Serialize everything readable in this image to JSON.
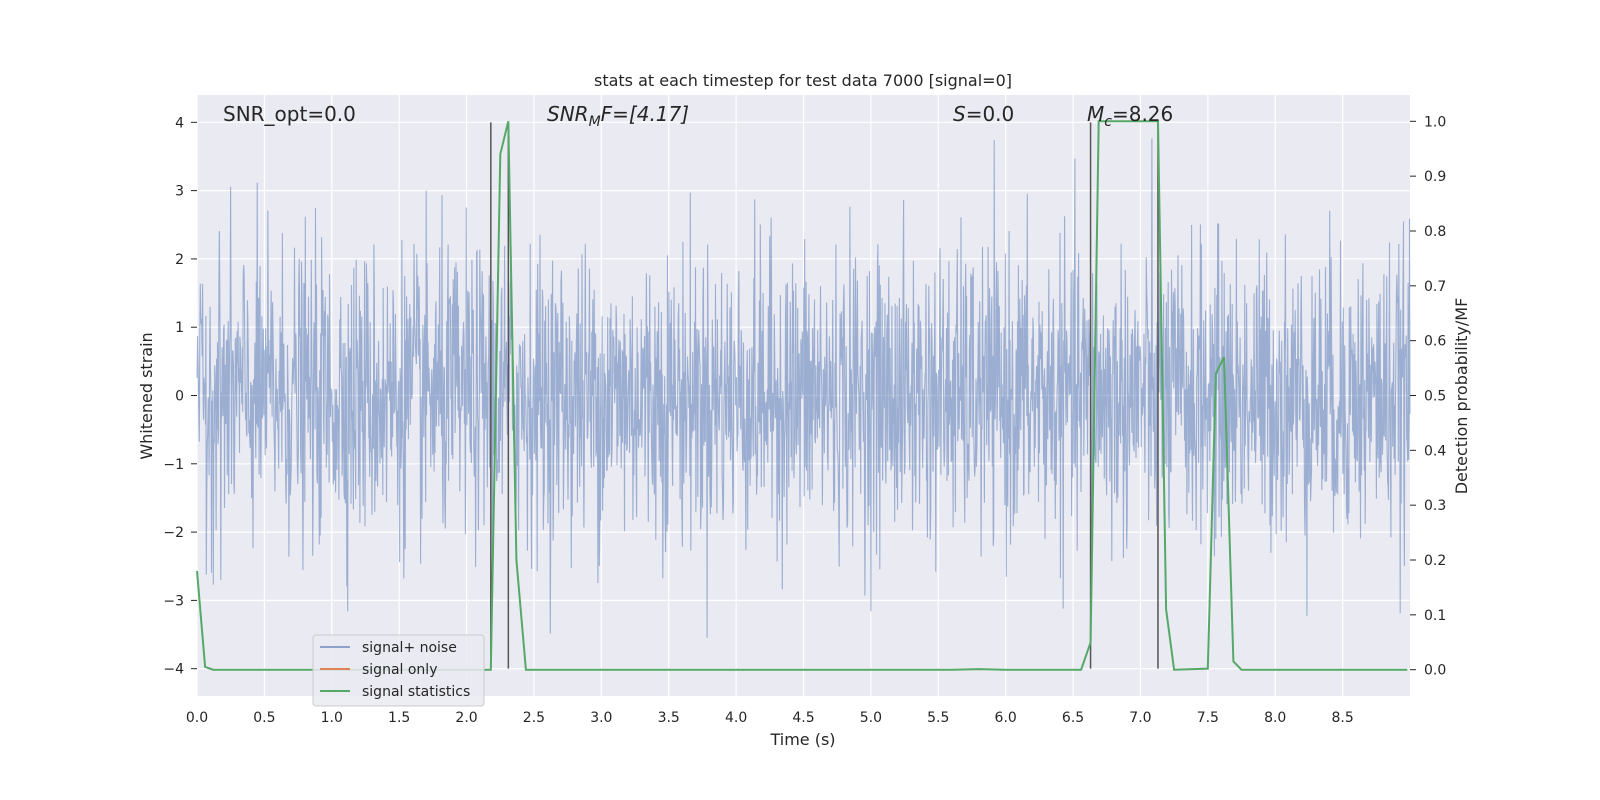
{
  "chart_data": {
    "type": "line",
    "title": "stats at each timestep for test data 7000 [signal=0]",
    "xlabel": "Time (s)",
    "ylabel": "Whitened strain",
    "y2label": "Detection probability/MF",
    "xlim": [
      0.0,
      9.0
    ],
    "ylim": [
      -4.4,
      4.4
    ],
    "y2lim": [
      -0.048,
      1.048
    ],
    "xticks": [
      "0.0",
      "0.5",
      "1.0",
      "1.5",
      "2.0",
      "2.5",
      "3.0",
      "3.5",
      "4.0",
      "4.5",
      "5.0",
      "5.5",
      "6.0",
      "6.5",
      "7.0",
      "7.5",
      "8.0",
      "8.5"
    ],
    "yticks": [
      "−4",
      "−3",
      "−2",
      "−1",
      "0",
      "1",
      "2",
      "3",
      "4"
    ],
    "y2ticks": [
      "0.0",
      "0.1",
      "0.2",
      "0.3",
      "0.4",
      "0.5",
      "0.6",
      "0.7",
      "0.8",
      "0.9",
      "1.0"
    ],
    "grid": true,
    "legend_position": "lower-left",
    "annotations": {
      "snr_opt": "SNR_opt=0.0",
      "snr_mf_main": "SNR",
      "snr_mf_sub": "M",
      "snr_mf_rest": "F=[4.17]",
      "s_italic": "S",
      "s_value": "=0.0",
      "mc_main": "M",
      "mc_sub": "c",
      "mc_value": "=8.26"
    },
    "vertical_lines_x": [
      2.18,
      2.31,
      6.63,
      7.13
    ],
    "series": [
      {
        "name": "signal+ noise",
        "color": "#4c72b0",
        "style": "dense noise, approx. Gaussian, amplitude range about -4 to 3.9"
      },
      {
        "name": "signal only",
        "color": "#dd8452",
        "values": []
      },
      {
        "name": "signal statistics",
        "color": "#55a868",
        "x": [
          0.0,
          0.06,
          0.12,
          0.5,
          1.0,
          1.5,
          2.0,
          2.18,
          2.25,
          2.31,
          2.37,
          2.44,
          3.0,
          4.0,
          5.0,
          5.6,
          5.8,
          6.0,
          6.56,
          6.63,
          6.69,
          6.75,
          7.06,
          7.13,
          7.19,
          7.25,
          7.5,
          7.56,
          7.62,
          7.69,
          7.75,
          8.0,
          8.5,
          8.98
        ],
        "y": [
          0.18,
          0.005,
          0.0,
          0.0,
          0.0,
          0.0,
          0.0,
          0.0,
          0.94,
          1.0,
          0.2,
          0.0,
          0.0,
          0.0,
          0.0,
          0.0,
          0.001,
          0.0,
          0.0,
          0.05,
          1.0,
          1.0,
          1.0,
          1.0,
          0.11,
          0.0,
          0.002,
          0.54,
          0.57,
          0.015,
          0.0,
          0.0,
          0.0,
          0.0
        ]
      }
    ]
  }
}
